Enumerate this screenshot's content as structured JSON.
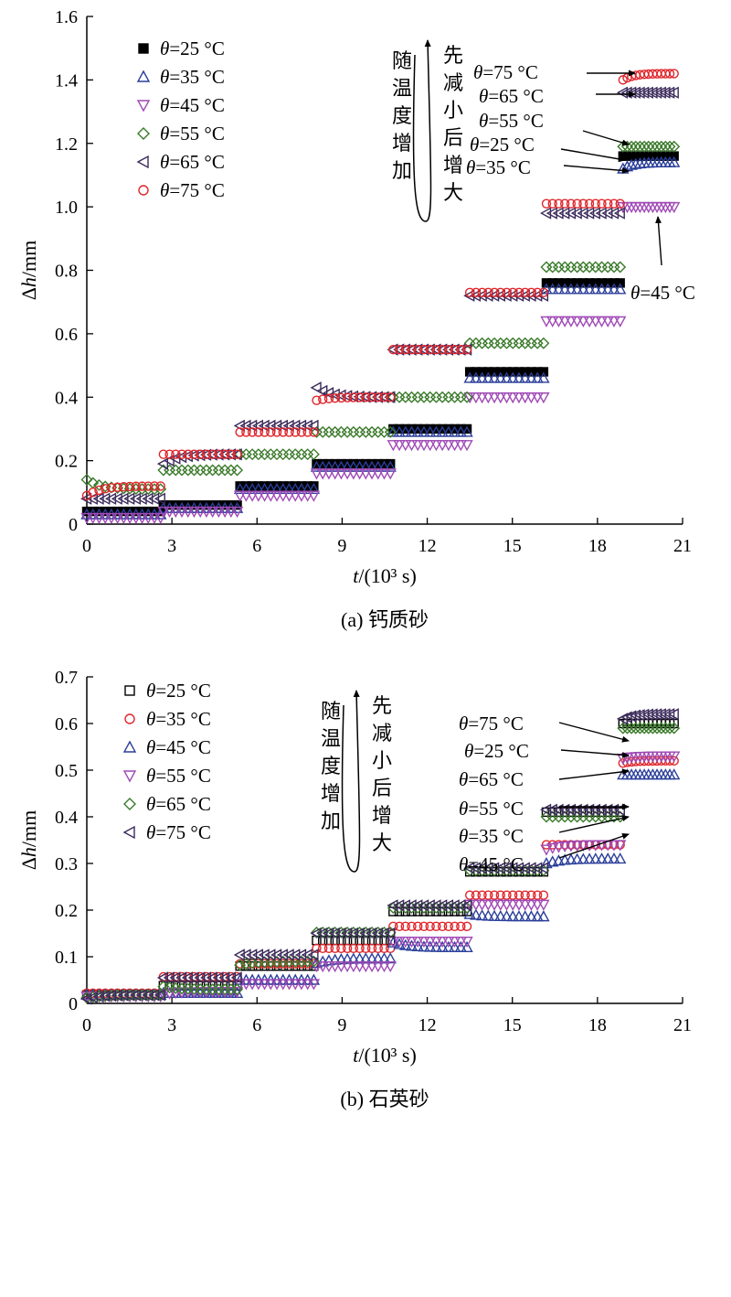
{
  "chart_data": [
    {
      "type": "scatter",
      "caption": "(a) 钙质砂",
      "xlabel": "t/(10³ s)",
      "ylabel": "Δh/mm",
      "xlim": [
        0,
        21
      ],
      "ylim": [
        0,
        1.6
      ],
      "xticks": [
        0,
        3,
        6,
        9,
        12,
        15,
        18,
        21
      ],
      "xtick_labels": [
        "0",
        "3",
        "6",
        "9",
        "12",
        "15",
        "18",
        "21"
      ],
      "yticks": [
        0,
        0.2,
        0.4,
        0.6,
        0.8,
        1.0,
        1.2,
        1.4,
        1.6
      ],
      "ytick_labels": [
        "0",
        "0.2",
        "0.4",
        "0.6",
        "0.8",
        "1.0",
        "1.2",
        "1.4",
        "1.6"
      ],
      "legend_position": "top-left",
      "stage_starts": [
        0,
        2.7,
        5.4,
        8.1,
        10.8,
        13.5,
        16.2,
        18.9
      ],
      "stage_ends": [
        2.6,
        5.3,
        8.0,
        10.7,
        13.4,
        16.1,
        18.8,
        20.7
      ],
      "series": [
        {
          "name": "θ=25 °C",
          "marker": "square-filled",
          "color": "#000000",
          "levels": [
            0.04,
            0.06,
            0.12,
            0.19,
            0.3,
            0.48,
            0.76,
            1.16
          ],
          "start_offsets": [
            0,
            0,
            0,
            0,
            0,
            0,
            0,
            0
          ]
        },
        {
          "name": "θ=35 °C",
          "marker": "triangle-up",
          "color": "#2b3f9a",
          "levels": [
            0.03,
            0.05,
            0.11,
            0.18,
            0.29,
            0.46,
            0.74,
            1.14
          ],
          "start_offsets": [
            0,
            0,
            0,
            0,
            0,
            0,
            0,
            -0.02
          ]
        },
        {
          "name": "θ=45 °C",
          "marker": "triangle-down",
          "color": "#a04ab6",
          "levels": [
            0.02,
            0.04,
            0.09,
            0.16,
            0.25,
            0.4,
            0.64,
            1.0
          ],
          "start_offsets": [
            0,
            0,
            0,
            0,
            0,
            0,
            0,
            0
          ]
        },
        {
          "name": "θ=55 °C",
          "marker": "diamond",
          "color": "#3a7a2a",
          "levels": [
            0.11,
            0.17,
            0.22,
            0.29,
            0.4,
            0.57,
            0.81,
            1.19
          ],
          "start_offsets": [
            0.03,
            0,
            0,
            0,
            0,
            0,
            0,
            0
          ]
        },
        {
          "name": "θ=65 °C",
          "marker": "triangle-left",
          "color": "#3b2a5a",
          "levels": [
            0.08,
            0.22,
            0.31,
            0.4,
            0.55,
            0.72,
            0.98,
            1.36
          ],
          "start_offsets": [
            0,
            -0.03,
            0,
            0.03,
            0,
            0,
            0,
            0
          ]
        },
        {
          "name": "θ=75 °C",
          "marker": "circle",
          "color": "#e0252a",
          "levels": [
            0.12,
            0.22,
            0.29,
            0.4,
            0.55,
            0.73,
            1.01,
            1.42
          ],
          "start_offsets": [
            -0.03,
            0,
            0,
            -0.01,
            0,
            0,
            0,
            -0.02
          ]
        }
      ],
      "annotations": {
        "trend_left": "随温度增加",
        "trend_right": "先减小后增大",
        "end_labels": [
          "θ=75 °C",
          "θ=65 °C",
          "θ=55 °C",
          "θ=25 °C",
          "θ=35 °C",
          "θ=45 °C"
        ]
      }
    },
    {
      "type": "scatter",
      "caption": "(b) 石英砂",
      "xlabel": "t/(10³ s)",
      "ylabel": "Δh/mm",
      "xlim": [
        0,
        21
      ],
      "ylim": [
        0,
        0.7
      ],
      "xticks": [
        0,
        3,
        6,
        9,
        12,
        15,
        18,
        21
      ],
      "xtick_labels": [
        "0",
        "3",
        "6",
        "9",
        "12",
        "15",
        "18",
        "21"
      ],
      "yticks": [
        0,
        0.1,
        0.2,
        0.3,
        0.4,
        0.5,
        0.6,
        0.7
      ],
      "ytick_labels": [
        "0",
        "0.1",
        "0.2",
        "0.3",
        "0.4",
        "0.5",
        "0.6",
        "0.7"
      ],
      "legend_position": "top-left",
      "stage_starts": [
        0,
        2.7,
        5.4,
        8.1,
        10.8,
        13.5,
        16.2,
        18.9
      ],
      "stage_ends": [
        2.6,
        5.3,
        8.0,
        10.7,
        13.4,
        16.1,
        18.8,
        20.7
      ],
      "series": [
        {
          "name": "θ=25 °C",
          "marker": "square-open",
          "color": "#000000",
          "levels": [
            0.018,
            0.038,
            0.08,
            0.135,
            0.197,
            0.282,
            0.41,
            0.6
          ],
          "start_offsets": [
            0,
            0,
            0,
            0,
            0,
            0,
            0,
            0
          ]
        },
        {
          "name": "θ=35 °C",
          "marker": "circle",
          "color": "#e0252a",
          "levels": [
            0.022,
            0.057,
            0.085,
            0.118,
            0.165,
            0.232,
            0.34,
            0.52
          ],
          "start_offsets": [
            0,
            0,
            0,
            0,
            0,
            0,
            0,
            -0.005
          ]
        },
        {
          "name": "θ=45 °C",
          "marker": "triangle-up",
          "color": "#2b3f9a",
          "levels": [
            0.018,
            0.022,
            0.05,
            0.096,
            0.12,
            0.186,
            0.31,
            0.49
          ],
          "start_offsets": [
            0,
            0,
            0,
            -0.01,
            0.01,
            0.005,
            -0.01,
            0
          ]
        },
        {
          "name": "θ=55 °C",
          "marker": "triangle-down",
          "color": "#a04ab6",
          "levels": [
            0.015,
            0.025,
            0.042,
            0.08,
            0.133,
            0.212,
            0.34,
            0.53
          ],
          "start_offsets": [
            0,
            -0.005,
            0,
            0,
            0,
            0,
            -0.01,
            -0.005
          ]
        },
        {
          "name": "θ=65 °C",
          "marker": "diamond",
          "color": "#3a7a2a",
          "levels": [
            0.018,
            0.03,
            0.09,
            0.152,
            0.205,
            0.285,
            0.4,
            0.59
          ],
          "start_offsets": [
            -0.006,
            0.006,
            -0.008,
            0,
            0,
            0,
            0,
            0
          ]
        },
        {
          "name": "θ=75 °C",
          "marker": "triangle-left",
          "color": "#3b2a5a",
          "levels": [
            0.018,
            0.055,
            0.104,
            0.15,
            0.21,
            0.29,
            0.415,
            0.62
          ],
          "start_offsets": [
            -0.008,
            0,
            0,
            0,
            0,
            0,
            0,
            -0.01
          ]
        }
      ],
      "annotations": {
        "trend_left": "随温度增加",
        "trend_right": "先减小后增大",
        "end_labels": [
          "θ=75 °C",
          "θ=25 °C",
          "θ=65 °C",
          "θ=55 °C",
          "θ=35 °C",
          "θ=45 °C"
        ]
      }
    }
  ]
}
